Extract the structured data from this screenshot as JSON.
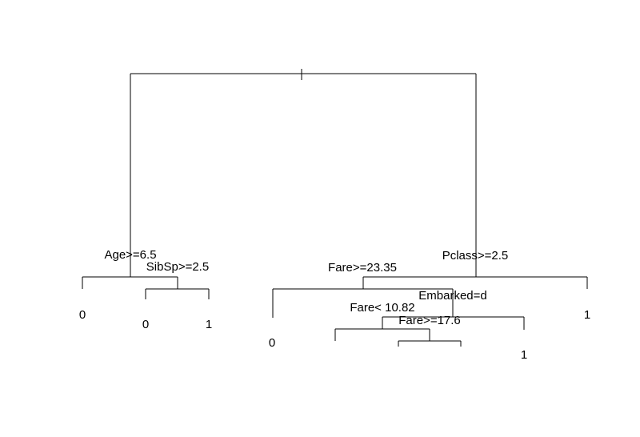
{
  "tree": {
    "type": "decision-tree",
    "root_tick": "|",
    "splits": {
      "age": "Age>=6.5",
      "sibsp": "SibSp>=2.5",
      "pclass": "Pclass>=2.5",
      "fare_high": "Fare>=23.35",
      "embarked": "Embarked=d",
      "fare_low": "Fare< 10.82",
      "fare_mid": "Fare>=17.6"
    },
    "leaves": {
      "age_left": "0",
      "sibsp_left": "0",
      "sibsp_right": "1",
      "fare_high_left": "0",
      "embarked_right": "1",
      "pclass_right": "1"
    }
  },
  "colors": {
    "line": "#000000",
    "text": "#000000",
    "background": "#ffffff"
  }
}
